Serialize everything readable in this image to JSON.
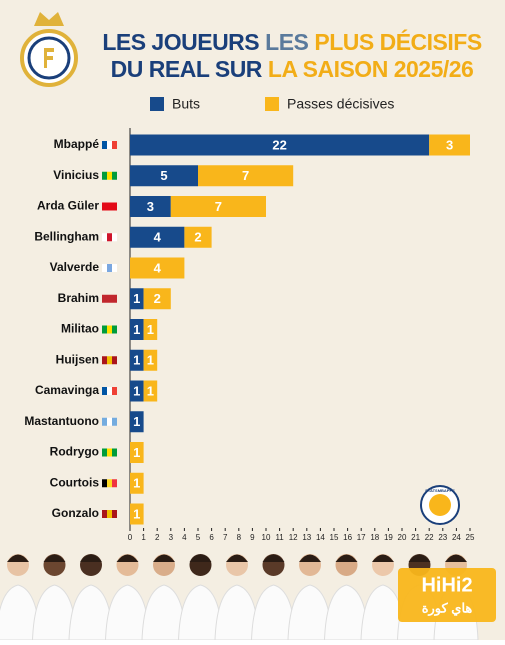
{
  "chart_data": {
    "type": "stacked_barh",
    "title_lines": [
      [
        "LES JOUEURS",
        "LES",
        "PLUS DÉCISIFS"
      ],
      [
        "DU REAL SUR",
        "LA SAISON 2025/26"
      ]
    ],
    "title_colors": [
      [
        "#1a3f7a",
        "#5a7a9c",
        "#f2ad17"
      ],
      [
        "#1a3f7a",
        "#f2ad17"
      ]
    ],
    "categories": [
      "Mbappé",
      "Vinicius",
      "Arda Güler",
      "Bellingham",
      "Valverde",
      "Brahim",
      "Militao",
      "Huijsen",
      "Camavinga",
      "Mastantuono",
      "Rodrygo",
      "Courtois",
      "Gonzalo"
    ],
    "series": [
      {
        "name": "Buts",
        "color": "#174a8b",
        "values": [
          22,
          5,
          3,
          4,
          0,
          1,
          1,
          1,
          1,
          1,
          0,
          0,
          0
        ]
      },
      {
        "name": "Passes décisives",
        "color": "#f9b61b",
        "values": [
          3,
          7,
          7,
          2,
          4,
          2,
          1,
          1,
          1,
          0,
          1,
          1,
          1
        ]
      }
    ],
    "xlim": [
      0,
      25
    ],
    "xticks": [
      0,
      1,
      2,
      3,
      4,
      5,
      6,
      7,
      8,
      9,
      10,
      11,
      12,
      13,
      14,
      15,
      16,
      17,
      18,
      19,
      20,
      21,
      22,
      23,
      24,
      25
    ],
    "legend": "top",
    "watermark": "STATSMBAPPE",
    "logo": [
      "HiHi2",
      "هاي كورة"
    ]
  }
}
